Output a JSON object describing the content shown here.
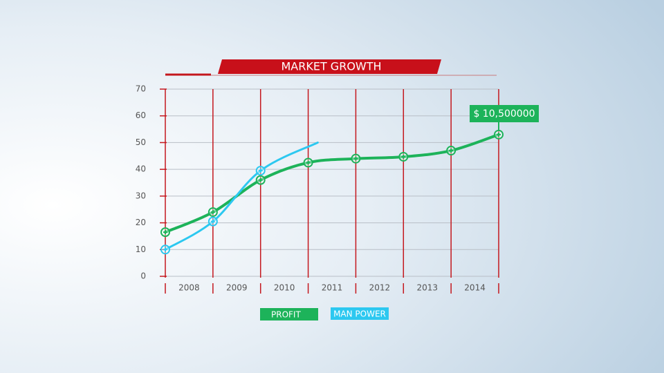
{
  "chart_data": {
    "type": "line",
    "title": "MARKET GROWTH",
    "xlim": [
      2007.5,
      2014.5
    ],
    "xticks": [
      2008,
      2009,
      2010,
      2011,
      2012,
      2013,
      2014
    ],
    "ylim": [
      0,
      70
    ],
    "yticks": [
      0,
      10,
      20,
      30,
      40,
      50,
      60,
      70
    ],
    "grid": true,
    "annotation": "$ 10,500000",
    "series": [
      {
        "name": "PROFIT",
        "color": "#1db35a",
        "x": [
          2007.5,
          2008.5,
          2009.5,
          2010.5,
          2011.5,
          2012.5,
          2013.5,
          2014.5
        ],
        "values": [
          16.5,
          24,
          36,
          42.5,
          44,
          44.7,
          47,
          53
        ]
      },
      {
        "name": "MAN POWER",
        "color": "#2cc8f0",
        "x": [
          2007.5,
          2008.5,
          2009.5,
          2010.7
        ],
        "values": [
          10,
          20.5,
          39.5,
          50
        ]
      }
    ]
  }
}
